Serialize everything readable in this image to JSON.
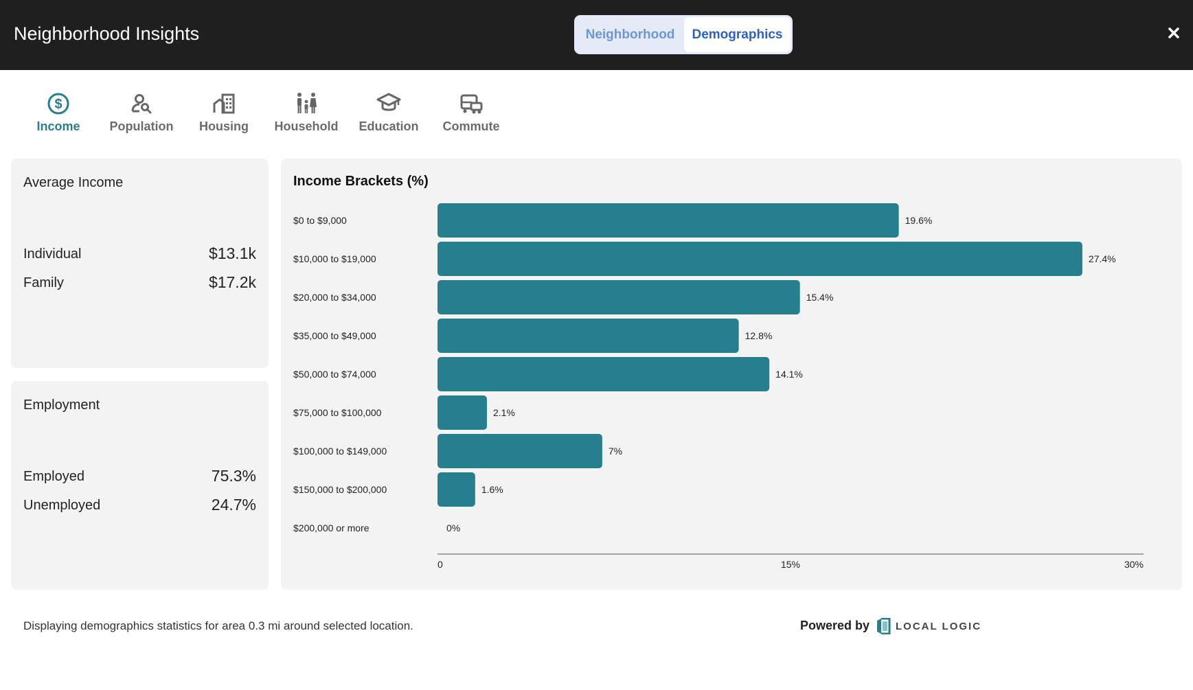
{
  "header": {
    "title": "Neighborhood Insights",
    "toggle": [
      "Neighborhood",
      "Demographics"
    ],
    "active_toggle": "Demographics",
    "close_icon": "close-icon"
  },
  "tabs": [
    {
      "label": "Income",
      "icon": "dollar-icon",
      "active": true
    },
    {
      "label": "Population",
      "icon": "person-search-icon",
      "active": false
    },
    {
      "label": "Housing",
      "icon": "building-icon",
      "active": false
    },
    {
      "label": "Household",
      "icon": "family-icon",
      "active": false
    },
    {
      "label": "Education",
      "icon": "graduation-cap-icon",
      "active": false
    },
    {
      "label": "Commute",
      "icon": "bus-icon",
      "active": false
    }
  ],
  "average_income": {
    "title": "Average Income",
    "rows": [
      {
        "label": "Individual",
        "value": "$13.1k"
      },
      {
        "label": "Family",
        "value": "$17.2k"
      }
    ]
  },
  "employment": {
    "title": "Employment",
    "rows": [
      {
        "label": "Employed",
        "value": "75.3%"
      },
      {
        "label": "Unemployed",
        "value": "24.7%"
      }
    ]
  },
  "chart_data": {
    "type": "bar",
    "orientation": "horizontal",
    "title": "Income Brackets (%)",
    "categories": [
      "$0 to $9,000",
      "$10,000 to $19,000",
      "$20,000 to $34,000",
      "$35,000 to $49,000",
      "$50,000 to $74,000",
      "$75,000 to $100,000",
      "$100,000 to $149,000",
      "$150,000 to $200,000",
      "$200,000 or more"
    ],
    "values": [
      19.6,
      27.4,
      15.4,
      12.8,
      14.1,
      2.1,
      7,
      1.6,
      0
    ],
    "value_labels": [
      "19.6%",
      "27.4%",
      "15.4%",
      "12.8%",
      "14.1%",
      "2.1%",
      "7%",
      "1.6%",
      "0%"
    ],
    "xlim": [
      0,
      30
    ],
    "xticks": [
      0,
      15,
      30
    ],
    "xtick_labels": [
      "0",
      "15%",
      "30%"
    ],
    "grid": false,
    "bar_color": "#277e8c"
  },
  "footer": {
    "note": "Displaying demographics statistics for area 0.3 mi around selected location.",
    "powered_by": "Powered by",
    "brand": "LOCAL LOGIC"
  },
  "colors": {
    "header_bg": "#1f1f1f",
    "accent": "#277e8c",
    "active_toggle_text": "#2a63c6",
    "card_bg": "#f3f3f3"
  }
}
